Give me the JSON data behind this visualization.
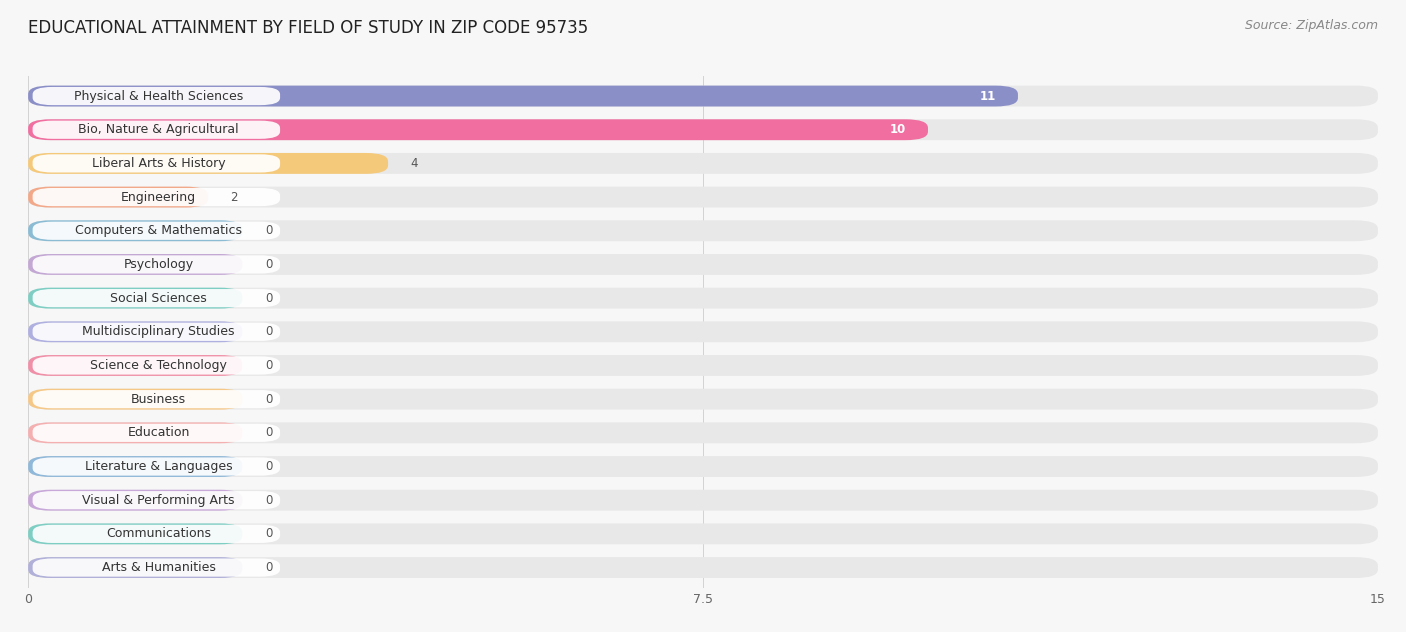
{
  "title": "EDUCATIONAL ATTAINMENT BY FIELD OF STUDY IN ZIP CODE 95735",
  "source": "Source: ZipAtlas.com",
  "categories": [
    "Physical & Health Sciences",
    "Bio, Nature & Agricultural",
    "Liberal Arts & History",
    "Engineering",
    "Computers & Mathematics",
    "Psychology",
    "Social Sciences",
    "Multidisciplinary Studies",
    "Science & Technology",
    "Business",
    "Education",
    "Literature & Languages",
    "Visual & Performing Arts",
    "Communications",
    "Arts & Humanities"
  ],
  "values": [
    11,
    10,
    4,
    2,
    0,
    0,
    0,
    0,
    0,
    0,
    0,
    0,
    0,
    0,
    0
  ],
  "bar_colors": [
    "#8B8FC8",
    "#F06FA0",
    "#F5C97A",
    "#F2A98A",
    "#8BBCD4",
    "#C4A8D4",
    "#7ECEC4",
    "#B0B0E0",
    "#F090A8",
    "#F5C888",
    "#F4B0B0",
    "#90B8D8",
    "#C8A8D8",
    "#7ECEC4",
    "#B0B0D8"
  ],
  "xlim": [
    0,
    15
  ],
  "xticks": [
    0,
    7.5,
    15
  ],
  "background_color": "#f7f7f7",
  "bar_background_color": "#e8e8e8",
  "title_fontsize": 12,
  "label_fontsize": 9,
  "value_fontsize": 8.5,
  "source_fontsize": 9
}
